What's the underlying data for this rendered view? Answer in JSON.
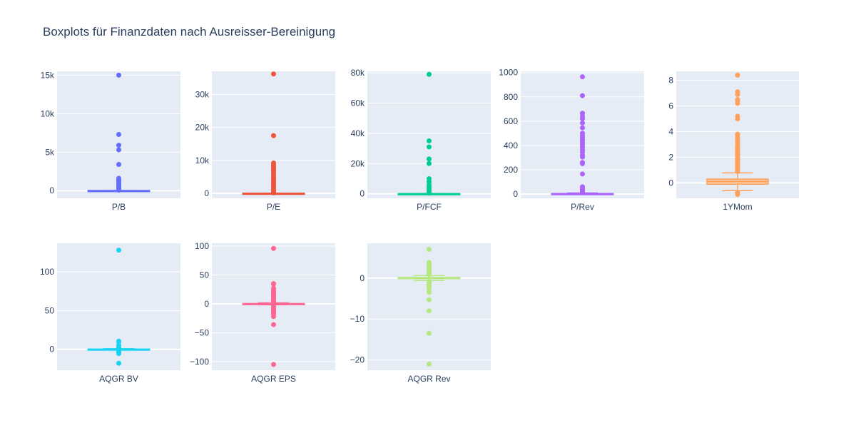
{
  "chart_data": {
    "type": "box",
    "title": "Boxplots für Finanzdaten nach Ausreisser-Bereinigung",
    "colors": {
      "plot_bg": "#e5ecf6",
      "grid": "#ffffff",
      "text": "#2a3f5f"
    },
    "panels": [
      {
        "name": "P/B",
        "color": "#636efa",
        "ylim": [
          -1000,
          15500
        ],
        "ticks": [
          0,
          5000,
          10000,
          15000
        ],
        "tick_labels": [
          "0",
          "5k",
          "10k",
          "15k"
        ],
        "box": {
          "q1": 0.8,
          "median": 1.5,
          "q3": 3,
          "whisker_low": -5,
          "whisker_high": 8
        },
        "outliers": [
          15000,
          7300,
          5900,
          5300,
          3400,
          1600,
          1400,
          1200,
          1000,
          800,
          600,
          450,
          300,
          200,
          120,
          60
        ]
      },
      {
        "name": "P/E",
        "color": "#ef553b",
        "ylim": [
          -1500,
          37000
        ],
        "ticks": [
          0,
          10000,
          20000,
          30000
        ],
        "tick_labels": [
          "0",
          "10k",
          "20k",
          "30k"
        ],
        "box": {
          "q1": 8,
          "median": 14,
          "q3": 22,
          "whisker_low": -20,
          "whisker_high": 45
        },
        "outliers": [
          36200,
          17500,
          9200,
          8500,
          7900,
          7300,
          6800,
          6000,
          5400,
          4700,
          4000,
          3400,
          2800,
          2200,
          1600,
          1100,
          700,
          350,
          150
        ]
      },
      {
        "name": "P/FCF",
        "color": "#00cc96",
        "ylim": [
          -3000,
          81000
        ],
        "ticks": [
          0,
          20000,
          40000,
          60000,
          80000
        ],
        "tick_labels": [
          "0",
          "20k",
          "40k",
          "60k",
          "80k"
        ],
        "box": {
          "q1": 8,
          "median": 15,
          "q3": 30,
          "whisker_low": -40,
          "whisker_high": 75
        },
        "outliers": [
          79000,
          35000,
          31000,
          23000,
          20000,
          10000,
          8000,
          6000,
          4500,
          3200,
          2000,
          1000,
          400
        ]
      },
      {
        "name": "P/Rev",
        "color": "#ab63fa",
        "ylim": [
          -35,
          1010
        ],
        "ticks": [
          0,
          200,
          400,
          600,
          800,
          1000
        ],
        "tick_labels": [
          "0",
          "200",
          "400",
          "600",
          "800",
          "1000"
        ],
        "box": {
          "q1": 0.8,
          "median": 1.8,
          "q3": 4,
          "whisker_low": 0,
          "whisker_high": 9
        },
        "outliers": [
          965,
          810,
          665,
          640,
          620,
          585,
          545,
          500,
          480,
          465,
          445,
          425,
          405,
          385,
          365,
          345,
          320,
          305,
          260,
          250,
          165,
          60,
          50,
          40,
          30,
          20,
          12
        ]
      },
      {
        "name": "1YMom",
        "color": "#ffa15a",
        "ylim": [
          -1.2,
          8.7
        ],
        "ticks": [
          0,
          2,
          4,
          6,
          8
        ],
        "tick_labels": [
          "0",
          "2",
          "4",
          "6",
          "8"
        ],
        "box": {
          "q1": -0.1,
          "median": 0.1,
          "q3": 0.3,
          "whisker_low": -0.6,
          "whisker_high": 0.78
        },
        "outliers": [
          8.4,
          7.1,
          6.9,
          6.5,
          6.4,
          6.2,
          5.2,
          5.0,
          3.8,
          3.7,
          3.5,
          3.4,
          3.2,
          3.0,
          2.9,
          2.8,
          2.7,
          2.6,
          2.5,
          2.4,
          2.3,
          2.2,
          2.1,
          2.0,
          1.9,
          1.8,
          1.7,
          1.6,
          1.5,
          1.4,
          1.3,
          1.2,
          1.1,
          1.0,
          0.9,
          -0.75,
          -0.8,
          -0.85,
          -0.9
        ]
      },
      {
        "name": "AQGR BV",
        "color": "#19d3f3",
        "ylim": [
          -27,
          137
        ],
        "ticks": [
          0,
          50,
          100
        ],
        "tick_labels": [
          "0",
          "50",
          "100"
        ],
        "box": {
          "q1": -0.1,
          "median": 0.05,
          "q3": 0.2,
          "whisker_low": -0.6,
          "whisker_high": 0.7
        },
        "outliers": [
          128,
          10.5,
          9.5,
          5,
          3,
          1.8,
          -1.5,
          -2.5,
          -3.5,
          -4.5,
          -5.5,
          -18
        ]
      },
      {
        "name": "AQGR EPS",
        "color": "#ff6692",
        "ylim": [
          -115,
          105
        ],
        "ticks": [
          -100,
          -50,
          0,
          50,
          100
        ],
        "tick_labels": [
          "−100",
          "−50",
          "0",
          "50",
          "100"
        ],
        "box": {
          "q1": -0.4,
          "median": 0.05,
          "q3": 0.5,
          "whisker_low": -1.6,
          "whisker_high": 1.6
        },
        "outliers": [
          96,
          35,
          34,
          27,
          24,
          21,
          19,
          17,
          15,
          13,
          11,
          9,
          7,
          5,
          4,
          3,
          -3,
          -4,
          -5,
          -7,
          -9,
          -11,
          -13,
          -15,
          -18,
          -22,
          -36,
          -105
        ]
      },
      {
        "name": "AQGR Rev",
        "color": "#b6e880",
        "ylim": [
          -22.5,
          8.5
        ],
        "ticks": [
          -20,
          -10,
          0
        ],
        "tick_labels": [
          "−20",
          "−10",
          "0"
        ],
        "box": {
          "q1": -0.15,
          "median": 0.0,
          "q3": 0.15,
          "whisker_low": -0.6,
          "whisker_high": 0.6
        },
        "outliers": [
          7,
          3.8,
          3.4,
          3.0,
          2.6,
          2.2,
          1.8,
          1.4,
          1.1,
          0.9,
          -0.9,
          -1.2,
          -1.6,
          -2.0,
          -2.6,
          -3.5,
          -5.3,
          -8,
          -13.5,
          -21
        ]
      }
    ]
  }
}
